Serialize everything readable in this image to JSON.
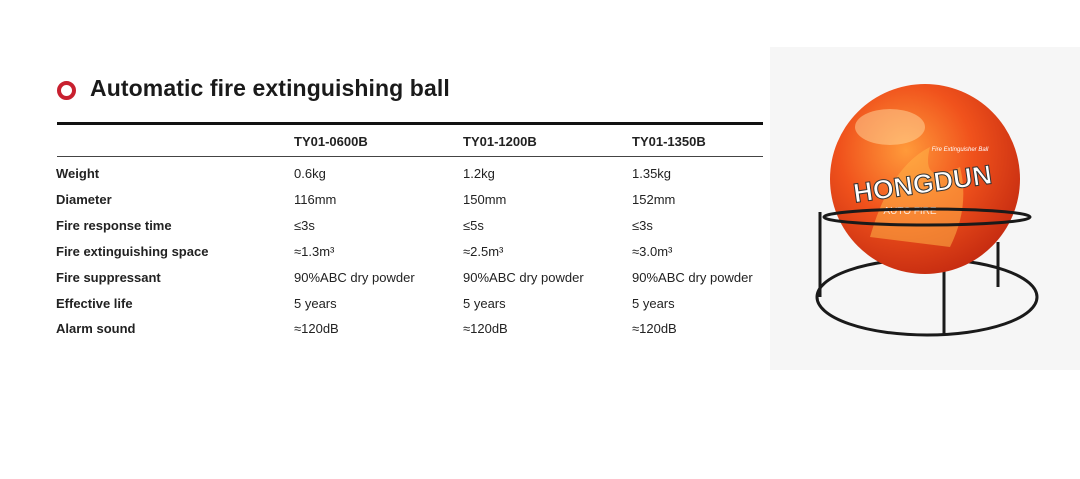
{
  "title": "Automatic fire extinguishing ball",
  "table": {
    "columns": [
      "TY01-0600B",
      "TY01-1200B",
      "TY01-1350B"
    ],
    "rows": [
      [
        "Weight",
        "0.6kg",
        "1.2kg",
        "1.35kg"
      ],
      [
        "Diameter",
        "116mm",
        "150mm",
        "152mm"
      ],
      [
        "Fire response time",
        "≤3s",
        "≤5s",
        "≤3s"
      ],
      [
        "Fire extinguishing space",
        "≈1.3m³",
        "≈2.5m³",
        "≈3.0m³"
      ],
      [
        "Fire suppressant",
        "90%ABC dry powder",
        "90%ABC dry powder",
        "90%ABC dry powder"
      ],
      [
        "Effective life",
        "5 years",
        "5 years",
        "5 years"
      ],
      [
        "Alarm sound",
        "≈120dB",
        "≈120dB",
        "≈120dB"
      ]
    ]
  },
  "image": {
    "brand": "HONGDUN",
    "tagline": "Fire Extinguisher Ball",
    "subtext": "AUTO FIRE"
  }
}
